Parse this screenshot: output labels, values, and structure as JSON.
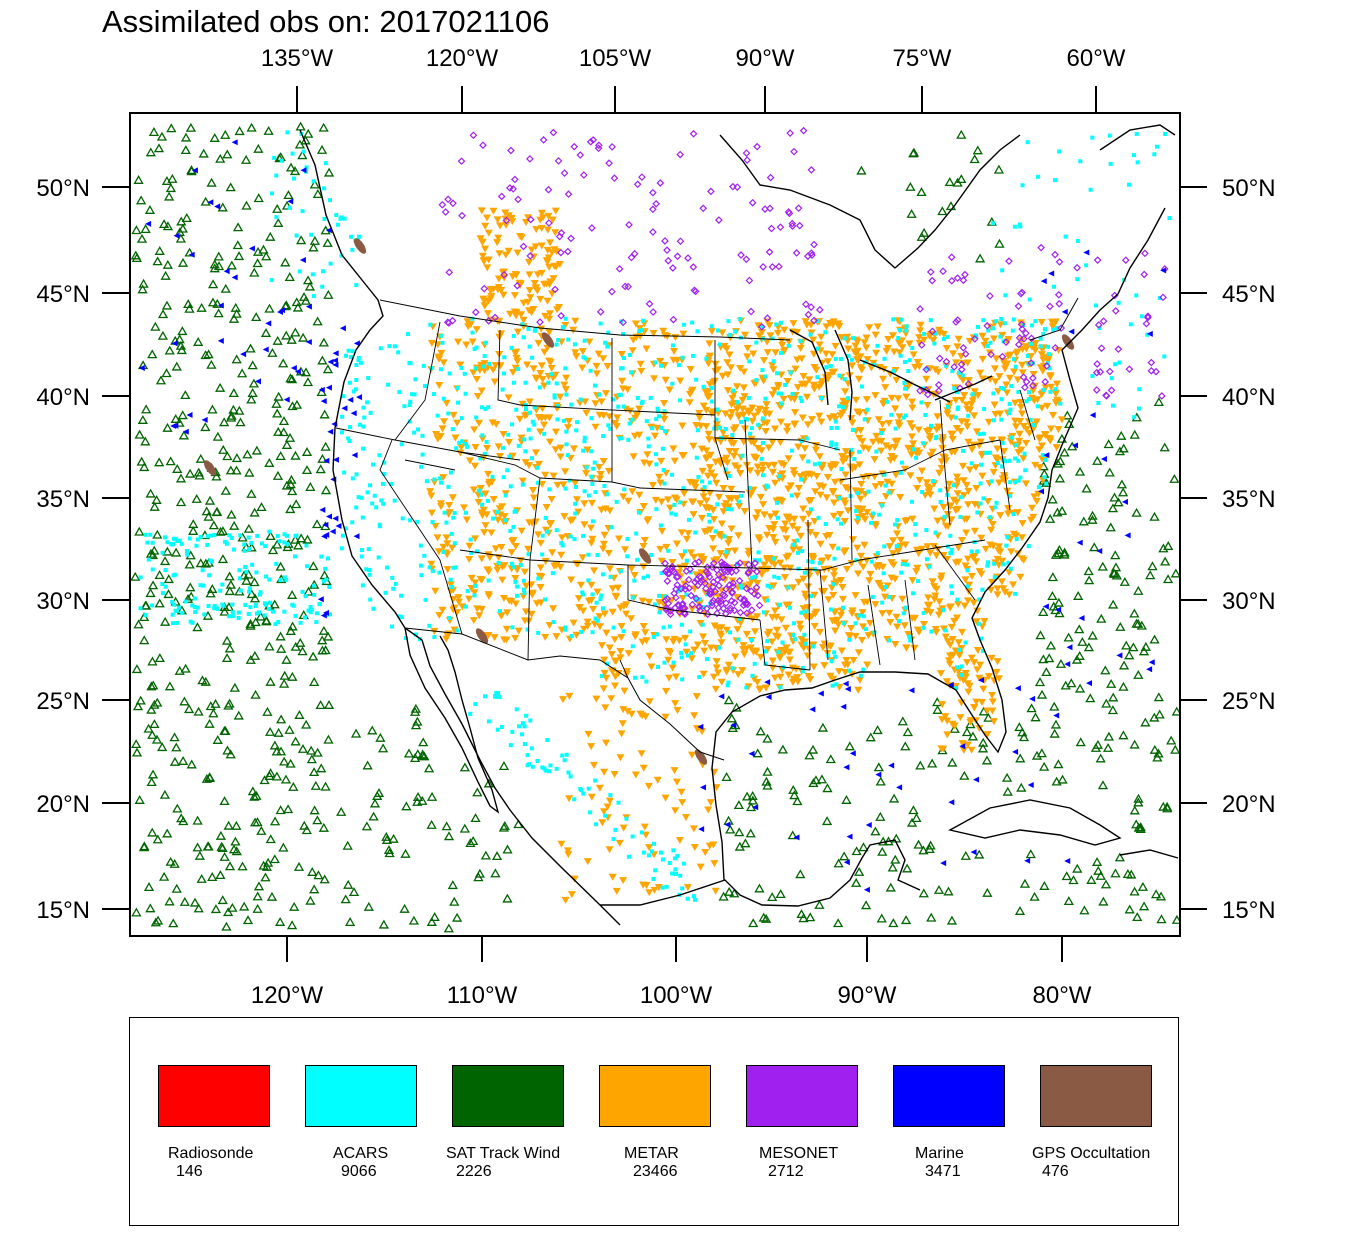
{
  "title": "Assimilated obs on: 2017021106",
  "top_axis_labels": [
    "135°W",
    "120°W",
    "105°W",
    "90°W",
    "75°W",
    "60°W"
  ],
  "bottom_axis_labels": [
    "120°W",
    "110°W",
    "100°W",
    "90°W",
    "80°W"
  ],
  "lat_labels": [
    "50°N",
    "45°N",
    "40°N",
    "35°N",
    "30°N",
    "25°N",
    "20°N",
    "15°N"
  ],
  "legend": [
    {
      "name": "Radiosonde",
      "count": "146",
      "color": "#ff0000",
      "symbol": "none"
    },
    {
      "name": "ACARS",
      "count": "9066",
      "color": "#00ffff",
      "symbol": "square"
    },
    {
      "name": "SAT Track Wind",
      "count": "2226",
      "color": "#006400",
      "symbol": "triangle-up"
    },
    {
      "name": "METAR",
      "count": "23466",
      "color": "#ffa500",
      "symbol": "triangle-down"
    },
    {
      "name": "MESONET",
      "count": "2712",
      "color": "#a020f0",
      "symbol": "diamond"
    },
    {
      "name": "Marine",
      "count": "3471",
      "color": "#0000ff",
      "symbol": "triangle-left"
    },
    {
      "name": "GPS Occultation",
      "count": "476",
      "color": "#8b5a44",
      "symbol": "blob"
    }
  ]
}
